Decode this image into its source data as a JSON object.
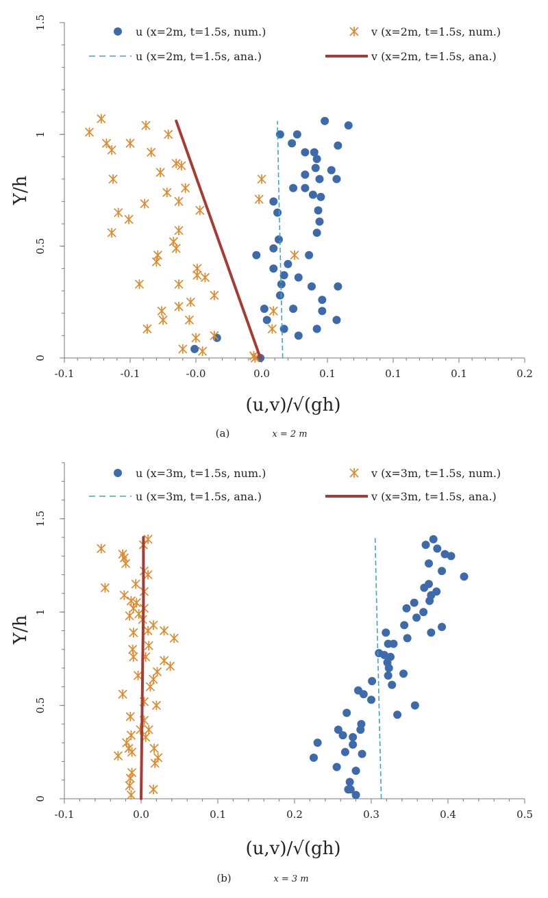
{
  "chart_data": [
    {
      "type": "scatter",
      "caption": "(a)",
      "caption_math": "x = 2 m",
      "xlabel": "(u,v)/√(gh)",
      "ylabel": "Y/h",
      "xlim": [
        -0.15,
        0.2
      ],
      "ylim": [
        0,
        1.5
      ],
      "xticks": [
        -0.15,
        -0.1,
        -0.05,
        0,
        0.05,
        0.1,
        0.15,
        0.2
      ],
      "xtick_labels": [
        "-0.1",
        "-0.1",
        "-0.0",
        "0.0",
        "0.1",
        "0.1",
        "0.1",
        "0.2"
      ],
      "yticks": [
        0,
        0.5,
        1,
        1.5
      ],
      "ytick_labels": [
        "0",
        "0.5",
        "1",
        "1.5"
      ],
      "grid": false,
      "legend_placement": "top",
      "colors": {
        "u": "#3c6aaa",
        "v": "#e08a2c",
        "u_line": "#3aa7c7",
        "v_line": "#a83a34"
      },
      "series": [
        {
          "name": "u (x=2m, t=1.5s, num.)",
          "kind": "scatter-circle",
          "color_key": "u",
          "points": [
            [
              0.048,
              1.06
            ],
            [
              0.066,
              1.04
            ],
            [
              0.014,
              1.0
            ],
            [
              0.027,
              1.0
            ],
            [
              0.023,
              0.96
            ],
            [
              0.058,
              0.95
            ],
            [
              0.033,
              0.92
            ],
            [
              0.04,
              0.92
            ],
            [
              0.042,
              0.89
            ],
            [
              0.041,
              0.85
            ],
            [
              0.053,
              0.84
            ],
            [
              0.033,
              0.82
            ],
            [
              0.044,
              0.8
            ],
            [
              0.057,
              0.8
            ],
            [
              0.024,
              0.76
            ],
            [
              0.033,
              0.76
            ],
            [
              0.039,
              0.73
            ],
            [
              0.045,
              0.72
            ],
            [
              0.009,
              0.7
            ],
            [
              0.043,
              0.66
            ],
            [
              0.012,
              0.65
            ],
            [
              0.044,
              0.61
            ],
            [
              0.042,
              0.56
            ],
            [
              0.013,
              0.53
            ],
            [
              0.009,
              0.49
            ],
            [
              -0.004,
              0.46
            ],
            [
              0.036,
              0.46
            ],
            [
              0.02,
              0.42
            ],
            [
              0.009,
              0.4
            ],
            [
              0.017,
              0.37
            ],
            [
              0.028,
              0.36
            ],
            [
              0.015,
              0.33
            ],
            [
              0.038,
              0.32
            ],
            [
              0.058,
              0.32
            ],
            [
              0.014,
              0.28
            ],
            [
              0.046,
              0.26
            ],
            [
              0.002,
              0.22
            ],
            [
              0.024,
              0.22
            ],
            [
              0.046,
              0.21
            ],
            [
              0.004,
              0.17
            ],
            [
              0.057,
              0.17
            ],
            [
              0.017,
              0.13
            ],
            [
              0.042,
              0.13
            ],
            [
              0.028,
              0.1
            ],
            [
              -0.034,
              0.09
            ],
            [
              -0.051,
              0.04
            ],
            [
              -0.001,
              0.0
            ]
          ]
        },
        {
          "name": "v (x=2m, t=1.5s, num.)",
          "kind": "scatter-asterisk",
          "color_key": "v",
          "points": [
            [
              -0.122,
              1.07
            ],
            [
              -0.131,
              1.01
            ],
            [
              -0.088,
              1.04
            ],
            [
              -0.071,
              1.0
            ],
            [
              -0.118,
              0.96
            ],
            [
              -0.1,
              0.96
            ],
            [
              -0.114,
              0.93
            ],
            [
              -0.084,
              0.92
            ],
            [
              -0.065,
              0.87
            ],
            [
              -0.061,
              0.86
            ],
            [
              -0.077,
              0.83
            ],
            [
              -0.113,
              0.8
            ],
            [
              0.0,
              0.8
            ],
            [
              -0.058,
              0.76
            ],
            [
              -0.072,
              0.74
            ],
            [
              -0.002,
              0.71
            ],
            [
              -0.063,
              0.7
            ],
            [
              -0.089,
              0.69
            ],
            [
              -0.109,
              0.65
            ],
            [
              -0.101,
              0.62
            ],
            [
              -0.047,
              0.66
            ],
            [
              -0.063,
              0.57
            ],
            [
              -0.114,
              0.56
            ],
            [
              -0.067,
              0.52
            ],
            [
              -0.065,
              0.49
            ],
            [
              -0.079,
              0.46
            ],
            [
              -0.08,
              0.43
            ],
            [
              0.025,
              0.46
            ],
            [
              -0.049,
              0.4
            ],
            [
              -0.049,
              0.37
            ],
            [
              -0.043,
              0.36
            ],
            [
              -0.063,
              0.33
            ],
            [
              -0.093,
              0.33
            ],
            [
              -0.036,
              0.28
            ],
            [
              -0.054,
              0.25
            ],
            [
              -0.063,
              0.23
            ],
            [
              -0.076,
              0.21
            ],
            [
              0.009,
              0.21
            ],
            [
              -0.075,
              0.17
            ],
            [
              -0.055,
              0.17
            ],
            [
              -0.087,
              0.13
            ],
            [
              0.008,
              0.13
            ],
            [
              -0.036,
              0.1
            ],
            [
              -0.05,
              0.09
            ],
            [
              -0.06,
              0.04
            ],
            [
              -0.045,
              0.03
            ],
            [
              -0.006,
              0.01
            ],
            [
              -0.005,
              0.0
            ]
          ]
        },
        {
          "name": "u (x=2m, t=1.5s, ana.)",
          "kind": "dashed-line",
          "color_key": "u_line",
          "points": [
            [
              0.016,
              0.0
            ],
            [
              0.015,
              0.25
            ],
            [
              0.014,
              0.5
            ],
            [
              0.013,
              0.75
            ],
            [
              0.012,
              1.06
            ]
          ]
        },
        {
          "name": "v (x=2m, t=1.5s, ana.)",
          "kind": "thick-line",
          "color_key": "v_line",
          "points": [
            [
              -0.001,
              0.0
            ],
            [
              -0.065,
              1.06
            ]
          ]
        }
      ]
    },
    {
      "type": "scatter",
      "caption": "(b)",
      "caption_math": "x = 3 m",
      "xlabel": "(u,v)/√(gh)",
      "ylabel": "Y/h",
      "xlim": [
        -0.1,
        0.5
      ],
      "ylim": [
        0,
        1.8
      ],
      "xticks": [
        -0.1,
        0,
        0.1,
        0.2,
        0.3,
        0.4,
        0.5
      ],
      "xtick_labels": [
        "-0.1",
        "0.0",
        "0.1",
        "0.2",
        "0.3",
        "0.4",
        "0.5"
      ],
      "yticks": [
        0,
        0.5,
        1,
        1.5
      ],
      "ytick_labels": [
        "0",
        "0.5",
        "1",
        "1.5"
      ],
      "grid": false,
      "legend_placement": "top",
      "colors": {
        "u": "#3c6aaa",
        "v": "#e08a2c",
        "u_line": "#3aa7c7",
        "v_line": "#a83a34"
      },
      "series": [
        {
          "name": "u (x=3m, t=1.5s, num.)",
          "kind": "scatter-circle",
          "color_key": "u",
          "points": [
            [
              0.381,
              1.39
            ],
            [
              0.371,
              1.36
            ],
            [
              0.386,
              1.34
            ],
            [
              0.396,
              1.31
            ],
            [
              0.404,
              1.3
            ],
            [
              0.375,
              1.26
            ],
            [
              0.392,
              1.22
            ],
            [
              0.421,
              1.19
            ],
            [
              0.375,
              1.15
            ],
            [
              0.369,
              1.13
            ],
            [
              0.385,
              1.11
            ],
            [
              0.378,
              1.09
            ],
            [
              0.376,
              1.06
            ],
            [
              0.356,
              1.05
            ],
            [
              0.346,
              1.02
            ],
            [
              0.368,
              1.0
            ],
            [
              0.359,
              0.97
            ],
            [
              0.343,
              0.93
            ],
            [
              0.392,
              0.92
            ],
            [
              0.378,
              0.89
            ],
            [
              0.319,
              0.89
            ],
            [
              0.347,
              0.86
            ],
            [
              0.329,
              0.83
            ],
            [
              0.322,
              0.83
            ],
            [
              0.31,
              0.78
            ],
            [
              0.317,
              0.77
            ],
            [
              0.325,
              0.76
            ],
            [
              0.321,
              0.73
            ],
            [
              0.323,
              0.7
            ],
            [
              0.342,
              0.67
            ],
            [
              0.322,
              0.66
            ],
            [
              0.327,
              0.61
            ],
            [
              0.301,
              0.63
            ],
            [
              0.283,
              0.58
            ],
            [
              0.29,
              0.56
            ],
            [
              0.3,
              0.53
            ],
            [
              0.357,
              0.5
            ],
            [
              0.268,
              0.46
            ],
            [
              0.334,
              0.45
            ],
            [
              0.287,
              0.4
            ],
            [
              0.257,
              0.37
            ],
            [
              0.286,
              0.37
            ],
            [
              0.263,
              0.34
            ],
            [
              0.276,
              0.33
            ],
            [
              0.23,
              0.3
            ],
            [
              0.276,
              0.29
            ],
            [
              0.266,
              0.25
            ],
            [
              0.288,
              0.24
            ],
            [
              0.225,
              0.22
            ],
            [
              0.255,
              0.17
            ],
            [
              0.28,
              0.15
            ],
            [
              0.272,
              0.09
            ],
            [
              0.27,
              0.05
            ],
            [
              0.273,
              0.05
            ],
            [
              0.28,
              0.02
            ]
          ]
        },
        {
          "name": "v (x=3m, t=1.5s, num.)",
          "kind": "scatter-asterisk",
          "color_key": "v",
          "points": [
            [
              0.009,
              1.39
            ],
            [
              0.003,
              1.36
            ],
            [
              -0.052,
              1.34
            ],
            [
              -0.024,
              1.31
            ],
            [
              -0.022,
              1.29
            ],
            [
              -0.02,
              1.26
            ],
            [
              0.004,
              1.22
            ],
            [
              0.009,
              1.2
            ],
            [
              -0.007,
              1.15
            ],
            [
              -0.047,
              1.13
            ],
            [
              0.004,
              1.11
            ],
            [
              -0.022,
              1.09
            ],
            [
              -0.013,
              1.06
            ],
            [
              -0.006,
              1.05
            ],
            [
              -0.01,
              1.02
            ],
            [
              0.004,
              1.02
            ],
            [
              -0.003,
              0.99
            ],
            [
              -0.015,
              0.98
            ],
            [
              0.002,
              0.96
            ],
            [
              0.016,
              0.93
            ],
            [
              0.009,
              0.9
            ],
            [
              0.03,
              0.9
            ],
            [
              -0.01,
              0.89
            ],
            [
              0.043,
              0.86
            ],
            [
              0.01,
              0.82
            ],
            [
              -0.011,
              0.8
            ],
            [
              -0.01,
              0.76
            ],
            [
              0.006,
              0.76
            ],
            [
              0.03,
              0.74
            ],
            [
              0.038,
              0.71
            ],
            [
              0.021,
              0.68
            ],
            [
              -0.004,
              0.66
            ],
            [
              0.016,
              0.64
            ],
            [
              0.012,
              0.6
            ],
            [
              -0.024,
              0.56
            ],
            [
              0.004,
              0.52
            ],
            [
              0.02,
              0.5
            ],
            [
              -0.014,
              0.44
            ],
            [
              0.004,
              0.42
            ],
            [
              -0.001,
              0.37
            ],
            [
              0.01,
              0.37
            ],
            [
              -0.013,
              0.34
            ],
            [
              0.006,
              0.33
            ],
            [
              -0.019,
              0.3
            ],
            [
              -0.016,
              0.27
            ],
            [
              0.017,
              0.27
            ],
            [
              -0.012,
              0.25
            ],
            [
              -0.03,
              0.23
            ],
            [
              0.022,
              0.22
            ],
            [
              0.018,
              0.19
            ],
            [
              -0.012,
              0.14
            ],
            [
              -0.014,
              0.11
            ],
            [
              -0.015,
              0.07
            ],
            [
              0.016,
              0.05
            ],
            [
              -0.013,
              0.02
            ]
          ]
        },
        {
          "name": "u (x=3m, t=1.5s, ana.)",
          "kind": "dashed-line",
          "color_key": "u_line",
          "points": [
            [
              0.313,
              0.0
            ],
            [
              0.311,
              0.35
            ],
            [
              0.309,
              0.7
            ],
            [
              0.307,
              1.05
            ],
            [
              0.305,
              1.4
            ]
          ]
        },
        {
          "name": "v (x=3m, t=1.5s, ana.)",
          "kind": "thick-line",
          "color_key": "v_line",
          "points": [
            [
              0.0,
              0.0
            ],
            [
              0.001,
              0.35
            ],
            [
              0.002,
              0.7
            ],
            [
              0.003,
              1.05
            ],
            [
              0.003,
              1.4
            ]
          ]
        }
      ]
    }
  ]
}
